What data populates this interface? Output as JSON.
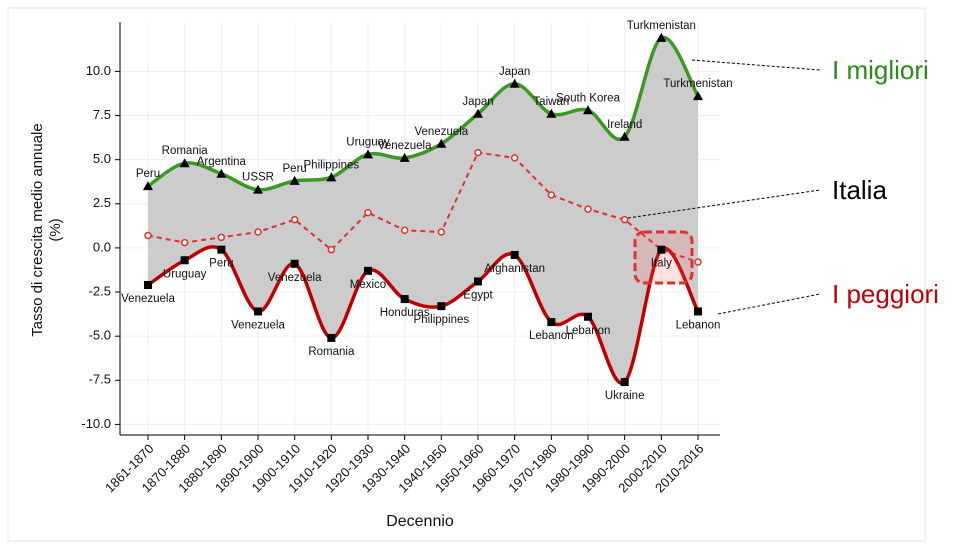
{
  "chart_data": {
    "type": "line",
    "xlabel": "Decennio",
    "ylabel": [
      "Tasso di crescita medio annuale",
      "(%)"
    ],
    "categories": [
      "1861-1870",
      "1870-1880",
      "1880-1890",
      "1890-1900",
      "1900-1910",
      "1910-1920",
      "1920-1930",
      "1930-1940",
      "1940-1950",
      "1950-1960",
      "1960-1970",
      "1970-1980",
      "1980-1990",
      "1990-2000",
      "2000-2010",
      "2010-2016"
    ],
    "ylim": [
      -10.6,
      12.8
    ],
    "yticks": [
      {
        "value": -10,
        "label": "-10.0"
      },
      -7.5,
      {
        "value": -5,
        "label": "-5.0"
      },
      -2.5,
      {
        "value": 0,
        "label": "0.0"
      },
      2.5,
      {
        "value": 5,
        "label": "5.0"
      },
      7.5,
      {
        "value": 10,
        "label": "10.0"
      }
    ],
    "grid": true,
    "series": [
      {
        "name": "I migliori",
        "color": "#3a9a1f",
        "marker": "triangle",
        "values": [
          3.5,
          4.8,
          4.2,
          3.3,
          3.8,
          4.0,
          5.3,
          5.1,
          5.9,
          7.6,
          9.3,
          7.6,
          7.8,
          6.3,
          11.9,
          8.6
        ],
        "point_labels": [
          "Peru",
          "Romania",
          "Argentina",
          "USSR",
          "Peru",
          "Philippines",
          "Uruguay",
          "Venezuela",
          "Venezuela",
          "Japan",
          "Japan",
          "Taiwan",
          "South Korea",
          "Ireland",
          "Turkmenistan",
          "Turkmenistan"
        ]
      },
      {
        "name": "Italia",
        "color": "#e03030",
        "marker": "circle",
        "dashed": true,
        "values": [
          0.7,
          0.3,
          0.6,
          0.9,
          1.6,
          -0.1,
          2.0,
          1.0,
          0.9,
          5.4,
          5.1,
          3.0,
          2.2,
          1.6,
          -0.1,
          -0.8
        ]
      },
      {
        "name": "I peggiori",
        "color": "#c00000",
        "marker": "square",
        "values": [
          -2.1,
          -0.7,
          -0.1,
          -3.6,
          -0.9,
          -5.1,
          -1.3,
          -2.9,
          -3.3,
          -1.9,
          -0.4,
          -4.2,
          -3.9,
          -7.6,
          -0.1,
          -3.6
        ],
        "point_labels": [
          "Venezuela",
          "Uruguay",
          "Peru",
          "Venezuela",
          "Venezuela",
          "Romania",
          "Mexico",
          "Honduras",
          "Philippines",
          "Egypt",
          "Afghanistan",
          "Lebanon",
          "Lebanon",
          "Ukraine",
          "Italy",
          "Lebanon"
        ]
      }
    ]
  }
}
